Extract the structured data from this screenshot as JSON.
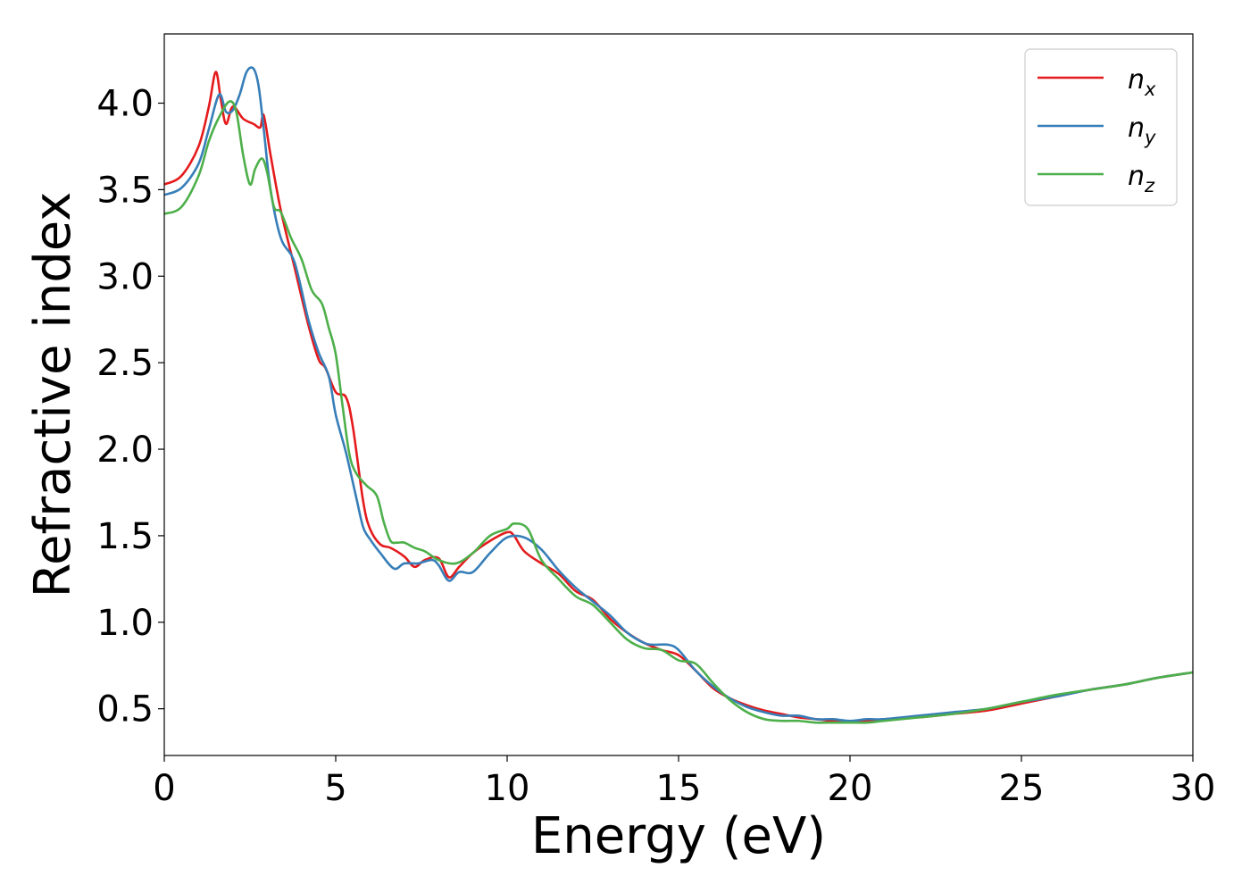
{
  "chart_data": {
    "type": "line",
    "title": "",
    "xlabel": "Energy (eV)",
    "ylabel": "Refractive index",
    "xlim": [
      0,
      30
    ],
    "ylim": [
      0.23,
      4.4
    ],
    "xticks": [
      0,
      5,
      10,
      15,
      20,
      25,
      30
    ],
    "xtick_labels": [
      "0",
      "5",
      "10",
      "15",
      "20",
      "25",
      "30"
    ],
    "yticks": [
      0.5,
      1.0,
      1.5,
      2.0,
      2.5,
      3.0,
      3.5,
      4.0
    ],
    "ytick_labels": [
      "0.5",
      "1.0",
      "1.5",
      "2.0",
      "2.5",
      "3.0",
      "3.5",
      "4.0"
    ],
    "grid": false,
    "legend_position": "upper-right",
    "series": [
      {
        "name": "n_x",
        "label_base": "n",
        "label_sub": "x",
        "color": "#e41a1c",
        "x": [
          0,
          0.5,
          1.0,
          1.3,
          1.5,
          1.65,
          1.8,
          2.0,
          2.3,
          2.6,
          2.8,
          2.9,
          3.1,
          3.4,
          3.8,
          4.2,
          4.5,
          4.7,
          5.0,
          5.3,
          5.5,
          5.8,
          6.0,
          6.3,
          6.6,
          7.0,
          7.3,
          7.6,
          8.0,
          8.3,
          8.6,
          9.0,
          9.5,
          10.0,
          10.2,
          10.5,
          11.0,
          11.5,
          12.0,
          12.5,
          13.0,
          13.5,
          14.0,
          14.5,
          15.0,
          15.5,
          16.0,
          16.5,
          17.0,
          17.5,
          18.0,
          18.5,
          19.0,
          19.5,
          20.0,
          20.5,
          21.0,
          22.0,
          23.0,
          24.0,
          25.0,
          26.0,
          27.0,
          28.0,
          29.0,
          30.0
        ],
        "y": [
          3.53,
          3.58,
          3.75,
          3.98,
          4.18,
          4.02,
          3.88,
          3.98,
          3.91,
          3.88,
          3.86,
          3.93,
          3.7,
          3.38,
          3.05,
          2.72,
          2.52,
          2.47,
          2.33,
          2.3,
          2.13,
          1.7,
          1.54,
          1.45,
          1.43,
          1.38,
          1.32,
          1.36,
          1.37,
          1.26,
          1.32,
          1.4,
          1.47,
          1.52,
          1.5,
          1.41,
          1.34,
          1.28,
          1.18,
          1.13,
          1.02,
          0.94,
          0.88,
          0.84,
          0.81,
          0.72,
          0.62,
          0.56,
          0.52,
          0.49,
          0.47,
          0.45,
          0.44,
          0.43,
          0.43,
          0.43,
          0.44,
          0.45,
          0.47,
          0.49,
          0.53,
          0.57,
          0.61,
          0.64,
          0.68,
          0.71
        ]
      },
      {
        "name": "n_y",
        "label_base": "n",
        "label_sub": "y",
        "color": "#377eb8",
        "x": [
          0,
          0.5,
          1.0,
          1.3,
          1.6,
          1.8,
          2.0,
          2.2,
          2.4,
          2.6,
          2.75,
          2.9,
          3.1,
          3.4,
          3.8,
          4.2,
          4.5,
          4.8,
          5.0,
          5.3,
          5.6,
          5.8,
          6.0,
          6.3,
          6.7,
          7.0,
          7.4,
          7.8,
          8.0,
          8.3,
          8.6,
          9.0,
          9.5,
          10.0,
          10.5,
          11.0,
          11.5,
          12.0,
          12.5,
          13.0,
          13.5,
          14.0,
          14.3,
          14.7,
          15.0,
          15.5,
          16.0,
          16.5,
          17.0,
          17.5,
          18.0,
          18.5,
          19.0,
          19.5,
          20.0,
          20.5,
          21.0,
          22.0,
          23.0,
          24.0,
          25.0,
          26.0,
          27.0,
          28.0,
          29.0,
          30.0
        ],
        "y": [
          3.47,
          3.51,
          3.65,
          3.85,
          4.05,
          3.95,
          3.96,
          4.05,
          4.18,
          4.2,
          4.1,
          3.85,
          3.5,
          3.22,
          3.08,
          2.75,
          2.56,
          2.42,
          2.2,
          1.98,
          1.72,
          1.55,
          1.48,
          1.4,
          1.31,
          1.34,
          1.34,
          1.36,
          1.33,
          1.24,
          1.29,
          1.29,
          1.4,
          1.49,
          1.49,
          1.42,
          1.3,
          1.2,
          1.12,
          1.04,
          0.94,
          0.88,
          0.87,
          0.87,
          0.84,
          0.72,
          0.63,
          0.56,
          0.51,
          0.48,
          0.46,
          0.46,
          0.44,
          0.44,
          0.43,
          0.44,
          0.44,
          0.46,
          0.48,
          0.5,
          0.54,
          0.57,
          0.61,
          0.64,
          0.68,
          0.71
        ]
      },
      {
        "name": "n_z",
        "label_base": "n",
        "label_sub": "z",
        "color": "#4daf4a",
        "x": [
          0,
          0.5,
          1.0,
          1.3,
          1.6,
          1.9,
          2.1,
          2.3,
          2.5,
          2.65,
          2.85,
          3.0,
          3.2,
          3.4,
          3.7,
          4.0,
          4.3,
          4.6,
          4.8,
          5.0,
          5.2,
          5.4,
          5.6,
          5.9,
          6.2,
          6.4,
          6.6,
          6.8,
          7.0,
          7.3,
          7.6,
          8.0,
          8.5,
          9.0,
          9.5,
          10.0,
          10.2,
          10.6,
          11.0,
          11.5,
          12.0,
          12.5,
          13.0,
          13.5,
          14.0,
          14.5,
          15.0,
          15.5,
          16.0,
          16.5,
          17.0,
          17.5,
          18.0,
          18.5,
          19.0,
          19.5,
          20.0,
          20.5,
          21.0,
          22.0,
          23.0,
          24.0,
          25.0,
          26.0,
          27.0,
          28.0,
          29.0,
          30.0
        ],
        "y": [
          3.36,
          3.4,
          3.58,
          3.78,
          3.92,
          4.01,
          3.95,
          3.7,
          3.53,
          3.62,
          3.68,
          3.6,
          3.4,
          3.37,
          3.22,
          3.1,
          2.92,
          2.84,
          2.7,
          2.55,
          2.25,
          1.97,
          1.86,
          1.79,
          1.73,
          1.58,
          1.47,
          1.46,
          1.46,
          1.43,
          1.41,
          1.36,
          1.34,
          1.4,
          1.5,
          1.54,
          1.57,
          1.54,
          1.36,
          1.25,
          1.15,
          1.1,
          1.0,
          0.9,
          0.85,
          0.84,
          0.78,
          0.76,
          0.65,
          0.55,
          0.48,
          0.44,
          0.43,
          0.43,
          0.42,
          0.42,
          0.42,
          0.42,
          0.43,
          0.45,
          0.47,
          0.5,
          0.54,
          0.58,
          0.61,
          0.64,
          0.68,
          0.71
        ]
      }
    ]
  }
}
